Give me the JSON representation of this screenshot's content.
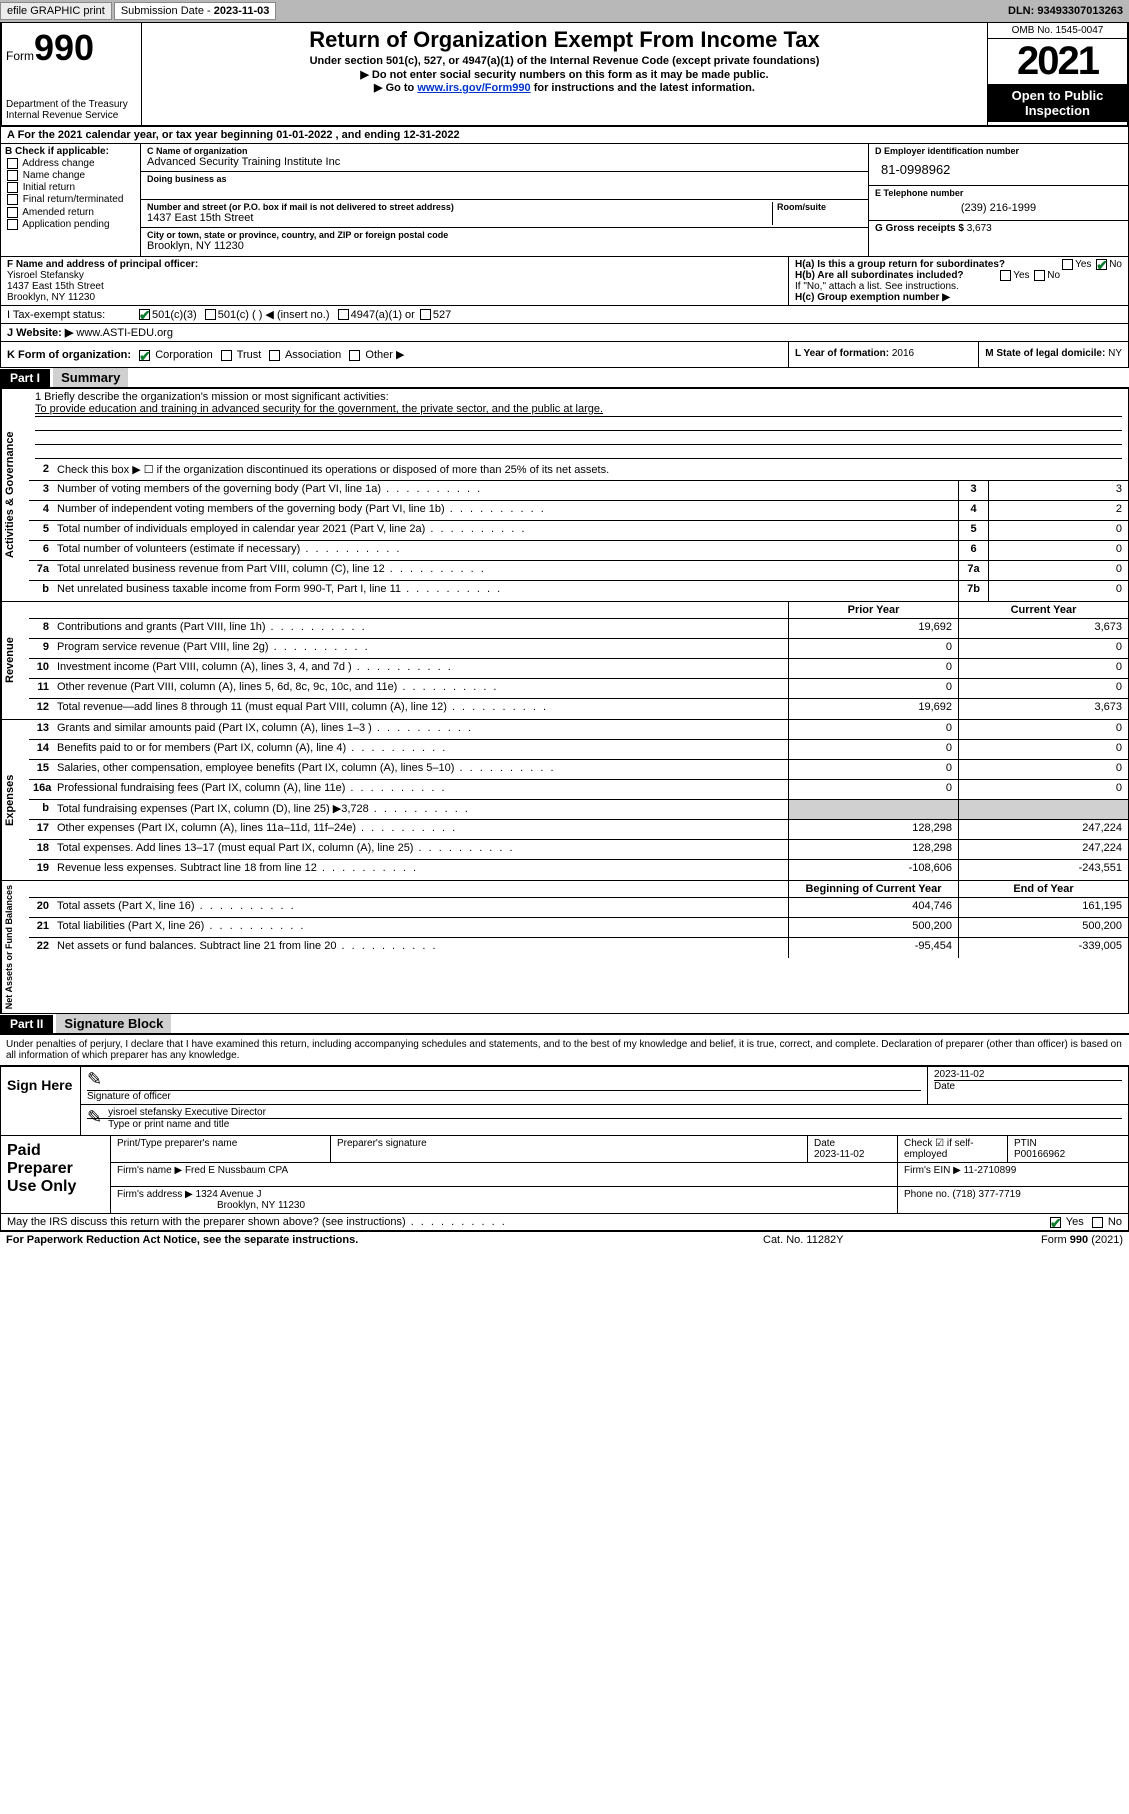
{
  "topbar": {
    "efile": "efile GRAPHIC print",
    "subdate_label": "Submission Date - ",
    "subdate": "2023-11-03",
    "dln_label": "DLN: ",
    "dln": "93493307013263"
  },
  "header": {
    "form_label": "Form",
    "form_num": "990",
    "dept": "Department of the Treasury\nInternal Revenue Service",
    "title": "Return of Organization Exempt From Income Tax",
    "sub1": "Under section 501(c), 527, or 4947(a)(1) of the Internal Revenue Code (except private foundations)",
    "sub2": "▶ Do not enter social security numbers on this form as it may be made public.",
    "sub3_prefix": "▶ Go to ",
    "sub3_link": "www.irs.gov/Form990",
    "sub3_suffix": " for instructions and the latest information.",
    "omb": "OMB No. 1545-0047",
    "year": "2021",
    "open_public": "Open to Public Inspection"
  },
  "row_a": "A For the 2021 calendar year, or tax year beginning 01-01-2022    , and ending 12-31-2022",
  "col_b": {
    "label": "B Check if applicable:",
    "opts": [
      "Address change",
      "Name change",
      "Initial return",
      "Final return/terminated",
      "Amended return",
      "Application pending"
    ]
  },
  "col_c": {
    "name_label": "C Name of organization",
    "name": "Advanced Security Training Institute Inc",
    "dba_label": "Doing business as",
    "dba": "",
    "street_label": "Number and street (or P.O. box if mail is not delivered to street address)",
    "room_label": "Room/suite",
    "street": "1437 East 15th Street",
    "city_label": "City or town, state or province, country, and ZIP or foreign postal code",
    "city": "Brooklyn, NY  11230"
  },
  "col_d": {
    "ein_label": "D Employer identification number",
    "ein": "81-0998962",
    "phone_label": "E Telephone number",
    "phone": "(239) 216-1999",
    "gross_label": "G Gross receipts $ ",
    "gross": "3,673"
  },
  "principal": {
    "label": "F  Name and address of principal officer:",
    "name": "Yisroel Stefansky",
    "addr1": "1437 East 15th Street",
    "addr2": "Brooklyn, NY  11230",
    "ha_label": "H(a)  Is this a group return for subordinates?",
    "ha_yes": "Yes",
    "ha_no": "No",
    "hb_label": "H(b)  Are all subordinates included?",
    "hb_note": "If \"No,\" attach a list. See instructions.",
    "hc_label": "H(c)  Group exemption number ▶"
  },
  "row_i": {
    "label": "I   Tax-exempt status:",
    "opt1": "501(c)(3)",
    "opt2": "501(c) (  ) ◀ (insert no.)",
    "opt3": "4947(a)(1) or",
    "opt4": "527"
  },
  "row_j": {
    "label": "J   Website: ▶ ",
    "val": "www.ASTI-EDU.org"
  },
  "row_k": {
    "label": "K Form of organization:",
    "opts": [
      "Corporation",
      "Trust",
      "Association",
      "Other ▶"
    ],
    "l_label": "L Year of formation: ",
    "l_val": "2016",
    "m_label": "M State of legal domicile: ",
    "m_val": "NY"
  },
  "part1": {
    "tag": "Part I",
    "title": "Summary"
  },
  "mission": {
    "q1": "1   Briefly describe the organization's mission or most significant activities:",
    "text": "To provide education and training in advanced security for the government, the private sector, and the public at large."
  },
  "lines_gov": [
    {
      "n": "2",
      "d": "Check this box ▶ ☐ if the organization discontinued its operations or disposed of more than 25% of its net assets."
    },
    {
      "n": "3",
      "d": "Number of voting members of the governing body (Part VI, line 1a)",
      "box": "3",
      "v": "3"
    },
    {
      "n": "4",
      "d": "Number of independent voting members of the governing body (Part VI, line 1b)",
      "box": "4",
      "v": "2"
    },
    {
      "n": "5",
      "d": "Total number of individuals employed in calendar year 2021 (Part V, line 2a)",
      "box": "5",
      "v": "0"
    },
    {
      "n": "6",
      "d": "Total number of volunteers (estimate if necessary)",
      "box": "6",
      "v": "0"
    },
    {
      "n": "7a",
      "d": "Total unrelated business revenue from Part VIII, column (C), line 12",
      "box": "7a",
      "v": "0"
    },
    {
      "n": "b",
      "d": "Net unrelated business taxable income from Form 990-T, Part I, line 11",
      "box": "7b",
      "v": "0"
    }
  ],
  "col_headers": {
    "prior": "Prior Year",
    "current": "Current Year"
  },
  "rev_lines": [
    {
      "n": "8",
      "d": "Contributions and grants (Part VIII, line 1h)",
      "p": "19,692",
      "c": "3,673"
    },
    {
      "n": "9",
      "d": "Program service revenue (Part VIII, line 2g)",
      "p": "0",
      "c": "0"
    },
    {
      "n": "10",
      "d": "Investment income (Part VIII, column (A), lines 3, 4, and 7d )",
      "p": "0",
      "c": "0"
    },
    {
      "n": "11",
      "d": "Other revenue (Part VIII, column (A), lines 5, 6d, 8c, 9c, 10c, and 11e)",
      "p": "0",
      "c": "0"
    },
    {
      "n": "12",
      "d": "Total revenue—add lines 8 through 11 (must equal Part VIII, column (A), line 12)",
      "p": "19,692",
      "c": "3,673"
    }
  ],
  "exp_lines": [
    {
      "n": "13",
      "d": "Grants and similar amounts paid (Part IX, column (A), lines 1–3 )",
      "p": "0",
      "c": "0"
    },
    {
      "n": "14",
      "d": "Benefits paid to or for members (Part IX, column (A), line 4)",
      "p": "0",
      "c": "0"
    },
    {
      "n": "15",
      "d": "Salaries, other compensation, employee benefits (Part IX, column (A), lines 5–10)",
      "p": "0",
      "c": "0"
    },
    {
      "n": "16a",
      "d": "Professional fundraising fees (Part IX, column (A), line 11e)",
      "p": "0",
      "c": "0"
    },
    {
      "n": "b",
      "d": "Total fundraising expenses (Part IX, column (D), line 25) ▶3,728",
      "p": "",
      "c": "",
      "grey": true
    },
    {
      "n": "17",
      "d": "Other expenses (Part IX, column (A), lines 11a–11d, 11f–24e)",
      "p": "128,298",
      "c": "247,224"
    },
    {
      "n": "18",
      "d": "Total expenses. Add lines 13–17 (must equal Part IX, column (A), line 25)",
      "p": "128,298",
      "c": "247,224"
    },
    {
      "n": "19",
      "d": "Revenue less expenses. Subtract line 18 from line 12",
      "p": "-108,606",
      "c": "-243,551"
    }
  ],
  "net_headers": {
    "beg": "Beginning of Current Year",
    "end": "End of Year"
  },
  "net_lines": [
    {
      "n": "20",
      "d": "Total assets (Part X, line 16)",
      "p": "404,746",
      "c": "161,195"
    },
    {
      "n": "21",
      "d": "Total liabilities (Part X, line 26)",
      "p": "500,200",
      "c": "500,200"
    },
    {
      "n": "22",
      "d": "Net assets or fund balances. Subtract line 21 from line 20",
      "p": "-95,454",
      "c": "-339,005"
    }
  ],
  "vtabs": {
    "gov": "Activities & Governance",
    "rev": "Revenue",
    "exp": "Expenses",
    "net": "Net Assets or Fund Balances"
  },
  "part2": {
    "tag": "Part II",
    "title": "Signature Block"
  },
  "sig_decl": "Under penalties of perjury, I declare that I have examined this return, including accompanying schedules and statements, and to the best of my knowledge and belief, it is true, correct, and complete. Declaration of preparer (other than officer) is based on all information of which preparer has any knowledge.",
  "sign": {
    "here": "Sign Here",
    "sig_label": "Signature of officer",
    "date_label": "Date",
    "date": "2023-11-02",
    "name": "yisroel stefansky  Executive Director",
    "name_label": "Type or print name and title"
  },
  "paid": {
    "title": "Paid Preparer Use Only",
    "h1": "Print/Type preparer's name",
    "h2": "Preparer's signature",
    "h3": "Date",
    "h3v": "2023-11-02",
    "h4": "Check ☑ if self-employed",
    "h5": "PTIN",
    "h5v": "P00166962",
    "firm_label": "Firm's name    ▶ ",
    "firm": "Fred E Nussbaum CPA",
    "ein_label": "Firm's EIN ▶ ",
    "ein": "11-2710899",
    "addr_label": "Firm's address ▶ ",
    "addr1": "1324 Avenue J",
    "addr2": "Brooklyn, NY  11230",
    "phone_label": "Phone no. ",
    "phone": "(718) 377-7719"
  },
  "discuss": "May the IRS discuss this return with the preparer shown above? (see instructions)",
  "footer": {
    "left": "For Paperwork Reduction Act Notice, see the separate instructions.",
    "mid": "Cat. No. 11282Y",
    "right": "Form 990 (2021)"
  },
  "colors": {
    "link": "#0033cc",
    "check_green": "#0a7d2c",
    "grey_bg": "#d0d0d0",
    "topbar_bg": "#b8b8b8"
  }
}
